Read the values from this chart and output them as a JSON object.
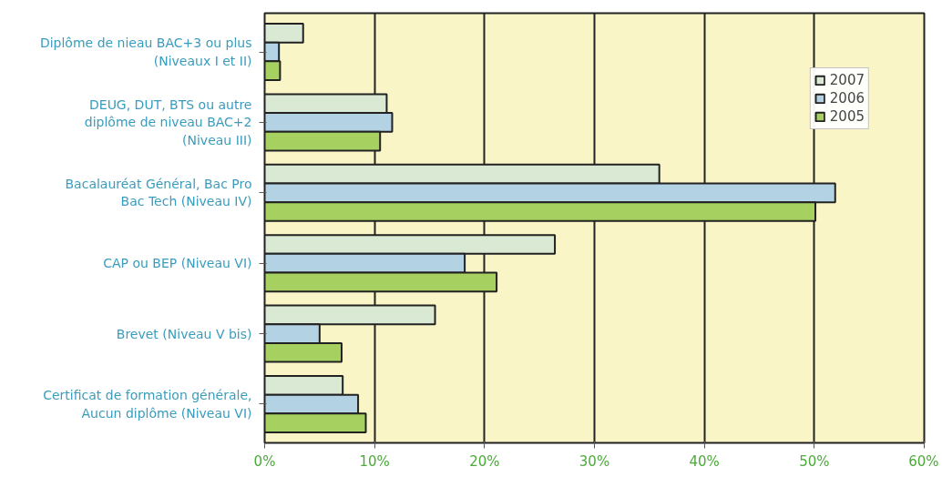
{
  "chart_data": {
    "type": "bar",
    "orientation": "horizontal",
    "categories": [
      "Diplôme de nieau BAC+3 ou plus\n(Niveaux I et II)",
      "DEUG, DUT, BTS ou autre\ndiplôme de niveau BAC+2\n(Niveau III)",
      "Bacalauréat Général, Bac Pro\nBac Tech (Niveau IV)",
      "CAP ou BEP (Niveau VI)",
      "Brevet (Niveau V bis)",
      "Certificat de formation générale,\nAucun diplôme (Niveau VI)"
    ],
    "series": [
      {
        "name": "2007",
        "color": "#d9e9d3",
        "values": [
          3.5,
          11.1,
          35.9,
          26.4,
          15.5,
          7.1
        ]
      },
      {
        "name": "2006",
        "color": "#b3d2e4",
        "values": [
          1.3,
          11.6,
          51.9,
          18.2,
          5.0,
          8.5
        ]
      },
      {
        "name": "2005",
        "color": "#a6d060",
        "values": [
          1.4,
          10.5,
          50.1,
          21.1,
          7.0,
          9.2
        ]
      }
    ],
    "xlim": [
      0,
      60
    ],
    "xticks": [
      {
        "value": 0,
        "label": "0%"
      },
      {
        "value": 10,
        "label": "10%"
      },
      {
        "value": 20,
        "label": "20%"
      },
      {
        "value": 30,
        "label": "30%"
      },
      {
        "value": 40,
        "label": "40%"
      },
      {
        "value": 50,
        "label": "50%"
      },
      {
        "value": 60,
        "label": "60%"
      }
    ],
    "grid": "x",
    "legend": "top right"
  }
}
